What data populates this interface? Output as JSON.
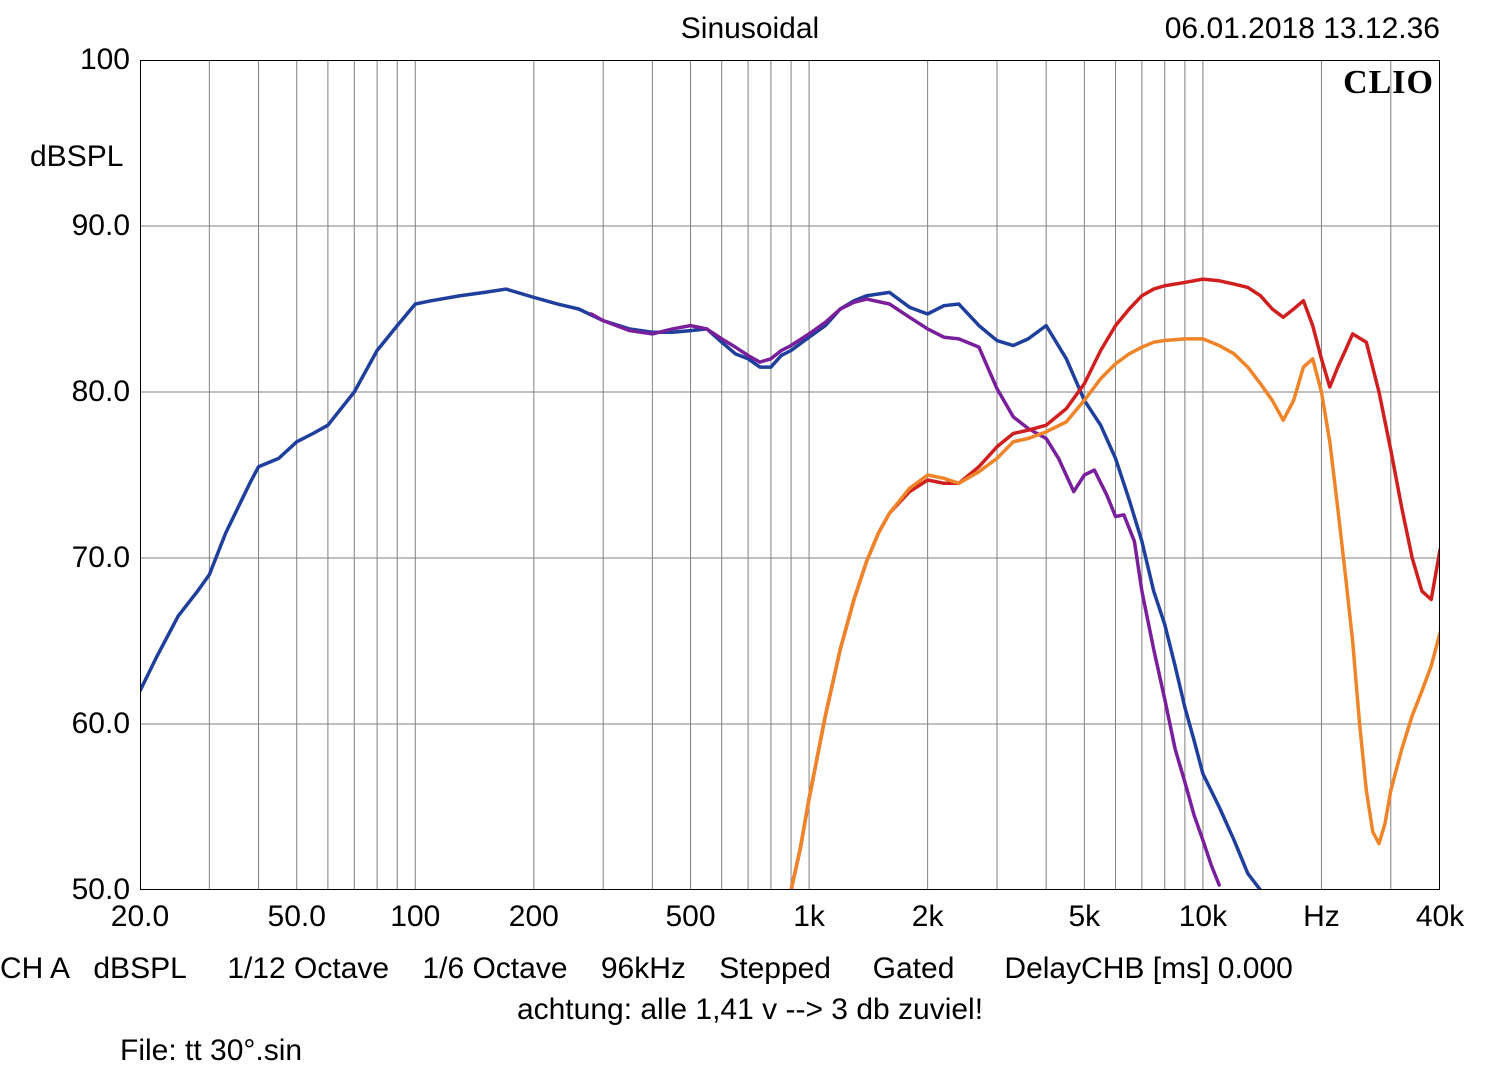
{
  "header": {
    "title": "Sinusoidal",
    "datetime": "06.01.2018 13.12.36"
  },
  "watermark": "CLIO",
  "chart": {
    "type": "line",
    "xscale": "log",
    "yscale": "linear",
    "xlim": [
      20,
      40000
    ],
    "ylim": [
      50,
      100
    ],
    "background_color": "#ffffff",
    "border_color": "#000000",
    "border_width": 2,
    "grid_color": "#808080",
    "grid_width": 1,
    "major_grid_x": [
      20,
      30,
      40,
      50,
      60,
      70,
      80,
      90,
      100,
      200,
      300,
      400,
      500,
      600,
      700,
      800,
      900,
      1000,
      2000,
      3000,
      4000,
      5000,
      6000,
      7000,
      8000,
      9000,
      10000,
      20000,
      30000,
      40000
    ],
    "major_grid_y": [
      50,
      60,
      70,
      80,
      90,
      100
    ],
    "xticks": [
      {
        "v": 20,
        "label": "20.0"
      },
      {
        "v": 50,
        "label": "50.0"
      },
      {
        "v": 100,
        "label": "100"
      },
      {
        "v": 200,
        "label": "200"
      },
      {
        "v": 500,
        "label": "500"
      },
      {
        "v": 1000,
        "label": "1k"
      },
      {
        "v": 2000,
        "label": "2k"
      },
      {
        "v": 5000,
        "label": "5k"
      },
      {
        "v": 10000,
        "label": "10k"
      },
      {
        "v": 20000,
        "label": "Hz"
      },
      {
        "v": 40000,
        "label": "40k"
      }
    ],
    "yticks": [
      {
        "v": 50,
        "label": "50.0"
      },
      {
        "v": 60,
        "label": "60.0"
      },
      {
        "v": 70,
        "label": "70.0"
      },
      {
        "v": 80,
        "label": "80.0"
      },
      {
        "v": 90,
        "label": "90.0"
      },
      {
        "v": 100,
        "label": "100"
      }
    ],
    "ylabel": "dBSPL",
    "line_width": 3.5,
    "series": [
      {
        "name": "blue",
        "color": "#1f3f9c",
        "points": [
          [
            20,
            62.0
          ],
          [
            22,
            64.0
          ],
          [
            25,
            66.5
          ],
          [
            28,
            68.0
          ],
          [
            30,
            69.0
          ],
          [
            33,
            71.5
          ],
          [
            38,
            74.5
          ],
          [
            40,
            75.5
          ],
          [
            45,
            76.0
          ],
          [
            50,
            77.0
          ],
          [
            55,
            77.5
          ],
          [
            60,
            78.0
          ],
          [
            70,
            80.0
          ],
          [
            80,
            82.5
          ],
          [
            90,
            84.0
          ],
          [
            100,
            85.3
          ],
          [
            110,
            85.5
          ],
          [
            130,
            85.8
          ],
          [
            150,
            86.0
          ],
          [
            170,
            86.2
          ],
          [
            200,
            85.7
          ],
          [
            230,
            85.3
          ],
          [
            260,
            85.0
          ],
          [
            300,
            84.3
          ],
          [
            350,
            83.8
          ],
          [
            400,
            83.6
          ],
          [
            450,
            83.6
          ],
          [
            500,
            83.7
          ],
          [
            550,
            83.8
          ],
          [
            600,
            83.0
          ],
          [
            650,
            82.3
          ],
          [
            700,
            82.0
          ],
          [
            750,
            81.5
          ],
          [
            800,
            81.5
          ],
          [
            850,
            82.2
          ],
          [
            900,
            82.5
          ],
          [
            1000,
            83.3
          ],
          [
            1100,
            84.0
          ],
          [
            1200,
            85.0
          ],
          [
            1300,
            85.5
          ],
          [
            1400,
            85.8
          ],
          [
            1600,
            86.0
          ],
          [
            1800,
            85.1
          ],
          [
            2000,
            84.7
          ],
          [
            2200,
            85.2
          ],
          [
            2400,
            85.3
          ],
          [
            2700,
            84.0
          ],
          [
            3000,
            83.1
          ],
          [
            3300,
            82.8
          ],
          [
            3600,
            83.2
          ],
          [
            4000,
            84.0
          ],
          [
            4500,
            82.0
          ],
          [
            5000,
            79.5
          ],
          [
            5500,
            78.0
          ],
          [
            6000,
            76.0
          ],
          [
            6500,
            73.5
          ],
          [
            7000,
            71.0
          ],
          [
            7500,
            68.0
          ],
          [
            8000,
            66.0
          ],
          [
            8500,
            63.5
          ],
          [
            9000,
            61.0
          ],
          [
            9500,
            59.0
          ],
          [
            10000,
            57.0
          ],
          [
            11000,
            55.0
          ],
          [
            12000,
            53.0
          ],
          [
            13000,
            51.0
          ],
          [
            14000,
            50.0
          ]
        ]
      },
      {
        "name": "purple",
        "color": "#7a1f9c",
        "points": [
          [
            280,
            84.7
          ],
          [
            300,
            84.3
          ],
          [
            350,
            83.7
          ],
          [
            400,
            83.5
          ],
          [
            450,
            83.8
          ],
          [
            500,
            84.0
          ],
          [
            550,
            83.8
          ],
          [
            600,
            83.2
          ],
          [
            650,
            82.7
          ],
          [
            700,
            82.2
          ],
          [
            750,
            81.8
          ],
          [
            800,
            82.0
          ],
          [
            850,
            82.5
          ],
          [
            900,
            82.8
          ],
          [
            1000,
            83.5
          ],
          [
            1100,
            84.2
          ],
          [
            1200,
            85.0
          ],
          [
            1300,
            85.4
          ],
          [
            1400,
            85.6
          ],
          [
            1600,
            85.3
          ],
          [
            1800,
            84.5
          ],
          [
            2000,
            83.8
          ],
          [
            2200,
            83.3
          ],
          [
            2400,
            83.2
          ],
          [
            2700,
            82.7
          ],
          [
            3000,
            80.2
          ],
          [
            3300,
            78.5
          ],
          [
            3600,
            77.8
          ],
          [
            4000,
            77.2
          ],
          [
            4300,
            76.0
          ],
          [
            4700,
            74.0
          ],
          [
            5000,
            75.0
          ],
          [
            5300,
            75.3
          ],
          [
            5700,
            73.8
          ],
          [
            6000,
            72.5
          ],
          [
            6300,
            72.6
          ],
          [
            6700,
            71.0
          ],
          [
            7000,
            68.0
          ],
          [
            7500,
            64.5
          ],
          [
            8000,
            61.5
          ],
          [
            8500,
            58.5
          ],
          [
            9000,
            56.5
          ],
          [
            9500,
            54.5
          ],
          [
            10000,
            53.0
          ],
          [
            10500,
            51.5
          ],
          [
            11000,
            50.3
          ]
        ]
      },
      {
        "name": "red",
        "color": "#d01f1f",
        "points": [
          [
            900,
            50.0
          ],
          [
            950,
            52.5
          ],
          [
            1000,
            55.5
          ],
          [
            1100,
            60.5
          ],
          [
            1200,
            64.5
          ],
          [
            1300,
            67.5
          ],
          [
            1400,
            69.8
          ],
          [
            1500,
            71.5
          ],
          [
            1600,
            72.7
          ],
          [
            1800,
            74.0
          ],
          [
            2000,
            74.7
          ],
          [
            2200,
            74.5
          ],
          [
            2400,
            74.5
          ],
          [
            2700,
            75.5
          ],
          [
            3000,
            76.7
          ],
          [
            3300,
            77.5
          ],
          [
            3600,
            77.7
          ],
          [
            4000,
            78.0
          ],
          [
            4500,
            79.0
          ],
          [
            5000,
            80.5
          ],
          [
            5500,
            82.5
          ],
          [
            6000,
            84.0
          ],
          [
            6500,
            85.0
          ],
          [
            7000,
            85.8
          ],
          [
            7500,
            86.2
          ],
          [
            8000,
            86.4
          ],
          [
            9000,
            86.6
          ],
          [
            10000,
            86.8
          ],
          [
            11000,
            86.7
          ],
          [
            12000,
            86.5
          ],
          [
            13000,
            86.3
          ],
          [
            14000,
            85.8
          ],
          [
            15000,
            85.0
          ],
          [
            16000,
            84.5
          ],
          [
            17000,
            85.0
          ],
          [
            18000,
            85.5
          ],
          [
            19000,
            84.0
          ],
          [
            20000,
            82.0
          ],
          [
            21000,
            80.3
          ],
          [
            22000,
            81.5
          ],
          [
            23000,
            82.5
          ],
          [
            24000,
            83.5
          ],
          [
            26000,
            83.0
          ],
          [
            28000,
            80.0
          ],
          [
            30000,
            76.5
          ],
          [
            32000,
            73.0
          ],
          [
            34000,
            70.0
          ],
          [
            36000,
            68.0
          ],
          [
            38000,
            67.5
          ],
          [
            40000,
            70.5
          ]
        ]
      },
      {
        "name": "orange",
        "color": "#f08428",
        "points": [
          [
            900,
            50.0
          ],
          [
            950,
            52.5
          ],
          [
            1000,
            55.5
          ],
          [
            1100,
            60.5
          ],
          [
            1200,
            64.5
          ],
          [
            1300,
            67.5
          ],
          [
            1400,
            69.8
          ],
          [
            1500,
            71.5
          ],
          [
            1600,
            72.7
          ],
          [
            1800,
            74.2
          ],
          [
            2000,
            75.0
          ],
          [
            2200,
            74.8
          ],
          [
            2400,
            74.5
          ],
          [
            2700,
            75.2
          ],
          [
            3000,
            76.0
          ],
          [
            3300,
            77.0
          ],
          [
            3600,
            77.2
          ],
          [
            4000,
            77.6
          ],
          [
            4500,
            78.2
          ],
          [
            5000,
            79.5
          ],
          [
            5500,
            80.8
          ],
          [
            6000,
            81.7
          ],
          [
            6500,
            82.3
          ],
          [
            7000,
            82.7
          ],
          [
            7500,
            83.0
          ],
          [
            8000,
            83.1
          ],
          [
            9000,
            83.2
          ],
          [
            10000,
            83.2
          ],
          [
            11000,
            82.8
          ],
          [
            12000,
            82.3
          ],
          [
            13000,
            81.5
          ],
          [
            14000,
            80.5
          ],
          [
            15000,
            79.5
          ],
          [
            16000,
            78.3
          ],
          [
            17000,
            79.5
          ],
          [
            18000,
            81.5
          ],
          [
            19000,
            82.0
          ],
          [
            20000,
            80.0
          ],
          [
            21000,
            77.0
          ],
          [
            22000,
            73.0
          ],
          [
            23000,
            69.0
          ],
          [
            24000,
            65.0
          ],
          [
            25000,
            60.0
          ],
          [
            26000,
            56.0
          ],
          [
            27000,
            53.5
          ],
          [
            28000,
            52.8
          ],
          [
            29000,
            54.0
          ],
          [
            30000,
            56.0
          ],
          [
            32000,
            58.5
          ],
          [
            34000,
            60.5
          ],
          [
            36000,
            62.0
          ],
          [
            38000,
            63.5
          ],
          [
            40000,
            65.5
          ]
        ]
      }
    ]
  },
  "footer": {
    "line1": "CH A   dBSPL     1/12 Octave    1/6 Octave    96kHz    Stepped     Gated      DelayCHB [ms] 0.000",
    "line2": "achtung: alle 1,41 v --> 3 db zuviel!",
    "line3": "File: tt 30°.sin"
  }
}
